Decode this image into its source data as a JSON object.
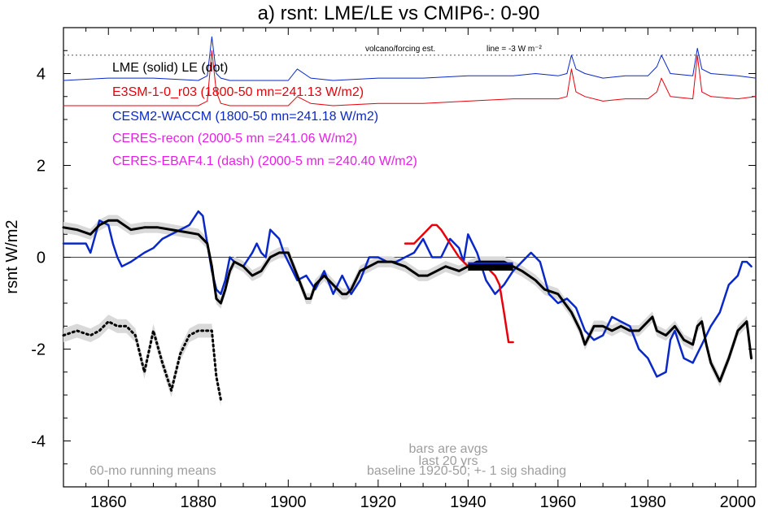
{
  "chart_data": {
    "type": "line",
    "title": "a) rsnt: LME/LE vs CMIP6-: 0-90",
    "ylabel": "rsnt W/m2",
    "xlabel": "",
    "xlim": [
      1850,
      2004
    ],
    "ylim": [
      -5,
      5
    ],
    "x_ticks": [
      1860,
      1880,
      1900,
      1920,
      1940,
      1960,
      1980,
      2000
    ],
    "y_ticks": [
      -4,
      -2,
      0,
      2,
      4
    ],
    "zero_line": 0,
    "reference_line": {
      "y": 4.4,
      "label_left": "volcano/forcing est.",
      "label_right": "line = -3 W m⁻²"
    },
    "legend": [
      {
        "text": "LME (solid)   LE (dot)",
        "color": "#000000"
      },
      {
        "text": "E3SM-1-0_r03 (1800-50 mn=241.13 W/m2)",
        "color": "#e8000b"
      },
      {
        "text": "CESM2-WACCM (1800-50 mn=241.18 W/m2)",
        "color": "#0a28c8"
      },
      {
        "text": "CERES-recon (2000-5 mn =241.06 W/m2)",
        "color": "#e81ee8"
      },
      {
        "text": "CERES-EBAF4.1 (dash) (2000-5 mn =240.40 W/m2)",
        "color": "#e81ee8"
      }
    ],
    "notes": {
      "left": "60-mo running means",
      "center_line1": "bars are avgs",
      "center_line2": "last 20 yrs",
      "right": "baseline 1920-50; +- 1 sig shading"
    },
    "series": [
      {
        "name": "LME (solid)",
        "color": "#000000",
        "x": [
          1850,
          1853,
          1856,
          1858,
          1860,
          1862,
          1865,
          1868,
          1871,
          1874,
          1877,
          1880,
          1882,
          1883,
          1884,
          1885,
          1886,
          1887,
          1888,
          1890,
          1892,
          1894,
          1896,
          1898,
          1900,
          1902,
          1904,
          1905,
          1906,
          1908,
          1910,
          1912,
          1913,
          1914,
          1916,
          1918,
          1920,
          1923,
          1926,
          1929,
          1931,
          1933,
          1935,
          1938,
          1940,
          1942,
          1945,
          1948,
          1950,
          1952,
          1955,
          1957,
          1960,
          1963,
          1965,
          1966,
          1968,
          1970,
          1972,
          1974,
          1976,
          1978,
          1980,
          1981,
          1982,
          1984,
          1986,
          1988,
          1990,
          1991,
          1992,
          1993,
          1994,
          1996,
          1998,
          2000,
          2002,
          2003
        ],
        "y": [
          0.65,
          0.6,
          0.5,
          0.7,
          0.8,
          0.8,
          0.6,
          0.65,
          0.65,
          0.6,
          0.55,
          0.5,
          0.3,
          -0.2,
          -0.9,
          -1.0,
          -0.7,
          -0.3,
          -0.1,
          -0.2,
          -0.4,
          -0.3,
          0.0,
          0.1,
          0.1,
          -0.4,
          -0.9,
          -0.9,
          -0.6,
          -0.4,
          -0.6,
          -0.8,
          -0.8,
          -0.7,
          -0.3,
          -0.2,
          -0.1,
          -0.1,
          -0.2,
          -0.4,
          -0.4,
          -0.3,
          -0.2,
          -0.3,
          -0.2,
          -0.1,
          -0.1,
          -0.1,
          -0.2,
          -0.3,
          -0.5,
          -0.7,
          -0.8,
          -1.2,
          -1.6,
          -1.9,
          -1.5,
          -1.5,
          -1.6,
          -1.5,
          -1.6,
          -1.6,
          -1.4,
          -1.3,
          -1.6,
          -1.7,
          -1.5,
          -1.8,
          -1.9,
          -1.5,
          -1.4,
          -1.9,
          -2.3,
          -2.7,
          -2.2,
          -1.6,
          -1.4,
          -2.2
        ]
      },
      {
        "name": "LE (dot)",
        "color": "#000000",
        "x": [
          1850,
          1853,
          1856,
          1858,
          1860,
          1862,
          1864,
          1866,
          1868,
          1870,
          1872,
          1874,
          1876,
          1878,
          1880,
          1882,
          1883,
          1884,
          1885
        ],
        "y": [
          -1.7,
          -1.6,
          -1.7,
          -1.6,
          -1.4,
          -1.5,
          -1.5,
          -1.7,
          -2.5,
          -1.6,
          -2.3,
          -2.9,
          -2.1,
          -1.7,
          -1.6,
          -1.6,
          -1.6,
          -2.6,
          -3.1
        ]
      },
      {
        "name": "E3SM-1-0_r03",
        "color": "#e8000b",
        "x": [
          1926,
          1928,
          1930,
          1932,
          1933,
          1934,
          1936,
          1938,
          1940,
          1942,
          1944,
          1946,
          1947,
          1948,
          1949,
          1950
        ],
        "y": [
          0.3,
          0.3,
          0.5,
          0.7,
          0.7,
          0.6,
          0.3,
          0.0,
          -0.2,
          -0.1,
          -0.2,
          -0.4,
          -0.6,
          -1.2,
          -1.85,
          -1.85
        ]
      },
      {
        "name": "CESM2-WACCM",
        "color": "#0a28c8",
        "x": [
          1850,
          1853,
          1855,
          1856,
          1858,
          1860,
          1861,
          1862,
          1863,
          1865,
          1868,
          1870,
          1872,
          1874,
          1876,
          1878,
          1880,
          1881,
          1882,
          1883,
          1884,
          1885,
          1886,
          1887,
          1888,
          1890,
          1892,
          1893,
          1894,
          1895,
          1896,
          1898,
          1899,
          1900,
          1902,
          1904,
          1906,
          1908,
          1910,
          1912,
          1914,
          1916,
          1918,
          1920,
          1922,
          1924,
          1926,
          1928,
          1930,
          1932,
          1934,
          1936,
          1938,
          1939,
          1940,
          1942,
          1944,
          1946,
          1948,
          1950,
          1952,
          1954,
          1956,
          1958,
          1960,
          1962,
          1964,
          1966,
          1968,
          1970,
          1972,
          1974,
          1976,
          1978,
          1980,
          1982,
          1984,
          1985,
          1986,
          1988,
          1990,
          1992,
          1994,
          1996,
          1998,
          2000,
          2001,
          2002,
          2003
        ],
        "y": [
          0.3,
          0.3,
          0.3,
          0.1,
          0.8,
          0.7,
          0.3,
          0.0,
          -0.2,
          -0.1,
          0.1,
          0.2,
          0.4,
          0.5,
          0.6,
          0.7,
          1.0,
          0.9,
          0.3,
          -0.3,
          -0.7,
          -0.8,
          -0.5,
          0.0,
          -0.1,
          -0.2,
          0.1,
          0.3,
          0.1,
          0.0,
          0.6,
          0.4,
          0.1,
          -0.1,
          -0.5,
          -0.4,
          -0.7,
          -0.3,
          -0.8,
          -0.4,
          -0.8,
          -0.5,
          0.0,
          0.0,
          -0.1,
          -0.1,
          0.0,
          0.1,
          0.4,
          0.0,
          0.0,
          0.4,
          0.2,
          -0.1,
          0.5,
          0.1,
          -0.5,
          -0.8,
          -0.6,
          -0.3,
          -0.1,
          0.1,
          -0.1,
          -0.8,
          -1.0,
          -0.9,
          -1.1,
          -1.6,
          -1.8,
          -1.7,
          -1.3,
          -1.4,
          -1.5,
          -2.0,
          -2.2,
          -2.6,
          -2.5,
          -1.8,
          -1.6,
          -2.2,
          -2.3,
          -1.9,
          -1.5,
          -1.2,
          -0.6,
          -0.4,
          -0.1,
          -0.1,
          -0.2
        ]
      },
      {
        "name": "volcanic forcing (E3SM)",
        "color": "#e8000b",
        "x": [
          1850,
          1860,
          1870,
          1880,
          1882,
          1883,
          1884,
          1885,
          1887,
          1890,
          1895,
          1900,
          1902,
          1905,
          1910,
          1920,
          1930,
          1940,
          1950,
          1955,
          1960,
          1962,
          1963,
          1964,
          1966,
          1970,
          1975,
          1980,
          1982,
          1983,
          1985,
          1990,
          1991,
          1992,
          1994,
          2000,
          2004
        ],
        "y": [
          3.3,
          3.3,
          3.3,
          3.3,
          3.4,
          4.5,
          3.6,
          3.35,
          3.3,
          3.3,
          3.3,
          3.3,
          3.5,
          3.35,
          3.3,
          3.35,
          3.35,
          3.4,
          3.45,
          3.45,
          3.45,
          3.5,
          4.1,
          3.6,
          3.5,
          3.4,
          3.45,
          3.45,
          3.6,
          3.9,
          3.5,
          3.45,
          4.4,
          3.6,
          3.5,
          3.45,
          3.5
        ]
      },
      {
        "name": "volcanic forcing (CESM2)",
        "color": "#0a28c8",
        "x": [
          1850,
          1860,
          1870,
          1880,
          1882,
          1883,
          1884,
          1885,
          1887,
          1890,
          1895,
          1900,
          1902,
          1905,
          1910,
          1920,
          1930,
          1940,
          1950,
          1955,
          1960,
          1962,
          1963,
          1964,
          1966,
          1970,
          1975,
          1980,
          1982,
          1983,
          1985,
          1990,
          1991,
          1992,
          1994,
          2000,
          2004
        ],
        "y": [
          3.85,
          3.9,
          3.9,
          3.85,
          3.95,
          4.8,
          4.0,
          3.9,
          3.85,
          3.85,
          3.85,
          3.85,
          4.1,
          3.9,
          3.85,
          3.9,
          3.9,
          3.95,
          3.95,
          4.0,
          3.95,
          4.0,
          4.4,
          4.1,
          4.0,
          3.9,
          3.95,
          3.95,
          4.15,
          4.4,
          4.0,
          3.95,
          4.55,
          4.1,
          4.0,
          3.95,
          3.9
        ]
      }
    ],
    "bars": [
      {
        "x0": 1940,
        "x1": 1950,
        "y": -0.18,
        "color": "#0a28c8"
      },
      {
        "x0": 1940,
        "x1": 1950,
        "y": -0.22,
        "color": "#000000"
      }
    ]
  }
}
